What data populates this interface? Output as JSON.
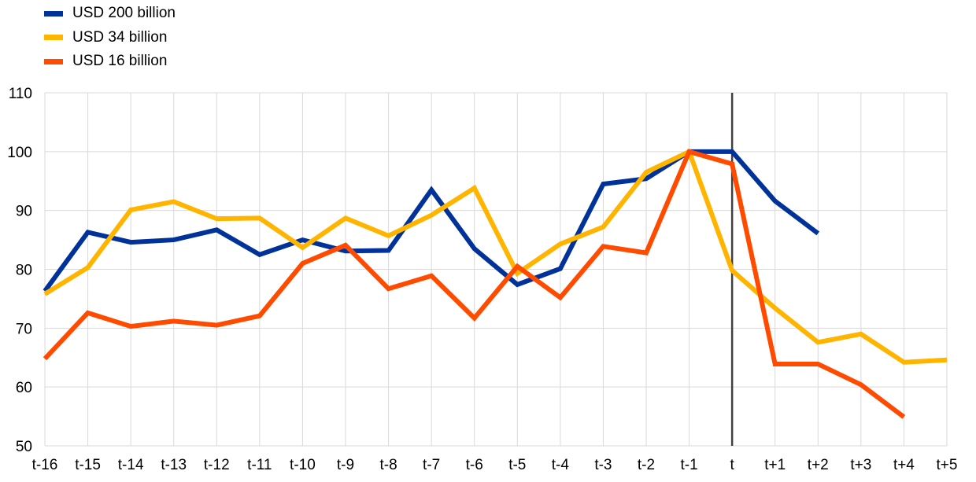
{
  "chart_data": {
    "type": "line",
    "title": "",
    "xlabel": "",
    "ylabel": "",
    "categories": [
      "t-16",
      "t-15",
      "t-14",
      "t-13",
      "t-12",
      "t-11",
      "t-10",
      "t-9",
      "t-8",
      "t-7",
      "t-6",
      "t-5",
      "t-4",
      "t-3",
      "t-2",
      "t-1",
      "t",
      "t+1",
      "t+2",
      "t+3",
      "t+4",
      "t+5"
    ],
    "ylim": [
      50,
      110
    ],
    "yticks": [
      50,
      60,
      70,
      80,
      90,
      100,
      110
    ],
    "grid": true,
    "legend_position": "top-left",
    "reference_line": {
      "category": "t",
      "color": "#404040"
    },
    "series": [
      {
        "name": "USD 200 billion",
        "color": "#003299",
        "values": [
          76.3,
          86.3,
          84.6,
          85.0,
          86.7,
          82.5,
          85.0,
          83.1,
          83.2,
          93.5,
          83.5,
          77.4,
          80.1,
          94.5,
          95.4,
          100,
          100,
          91.6,
          86.1,
          null,
          null,
          null
        ]
      },
      {
        "name": "USD 34 billion",
        "color": "#FFB400",
        "values": [
          75.8,
          80.3,
          90.1,
          91.5,
          88.6,
          88.7,
          83.7,
          88.7,
          85.7,
          89.2,
          93.8,
          79.3,
          84.3,
          87.2,
          96.5,
          100,
          79.8,
          73.4,
          67.6,
          69.0,
          64.2,
          64.6
        ]
      },
      {
        "name": "USD 16 billion",
        "color": "#FF4B00",
        "values": [
          64.8,
          72.6,
          70.3,
          71.2,
          70.5,
          72.1,
          81.0,
          84.1,
          76.7,
          78.9,
          71.7,
          80.5,
          75.2,
          83.9,
          82.8,
          100,
          97.9,
          63.9,
          63.9,
          60.4,
          54.9,
          null
        ]
      }
    ]
  }
}
